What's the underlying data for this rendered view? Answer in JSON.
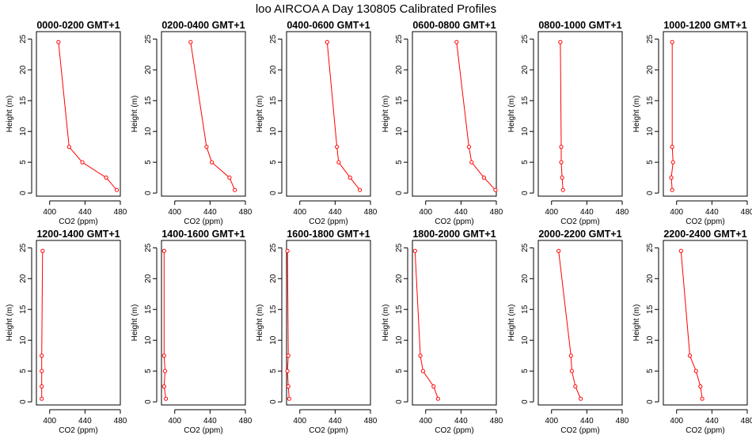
{
  "title": "loo AIRCOA A  Day 130805  Calibrated Profiles",
  "chart_data": {
    "type": "line",
    "xlabel": "CO2 (ppm)",
    "ylabel": "Height (m)",
    "xlim": [
      385,
      480
    ],
    "ylim": [
      0,
      25
    ],
    "xticks": [
      400,
      440,
      480
    ],
    "yticks": [
      0,
      5,
      10,
      15,
      20,
      25
    ],
    "line_color": "#ff0000",
    "marker": "open-circle",
    "grid": false,
    "panels": [
      {
        "title": "0000-0200 GMT+1",
        "points": [
          {
            "x": 410,
            "y": 24.5
          },
          {
            "x": 422,
            "y": 7.5
          },
          {
            "x": 437,
            "y": 5
          },
          {
            "x": 464,
            "y": 2.5
          },
          {
            "x": 476,
            "y": 0.5
          }
        ]
      },
      {
        "title": "0200-0400 GMT+1",
        "points": [
          {
            "x": 418,
            "y": 24.5
          },
          {
            "x": 436,
            "y": 7.5
          },
          {
            "x": 442,
            "y": 5
          },
          {
            "x": 462,
            "y": 2.5
          },
          {
            "x": 468,
            "y": 0.5
          }
        ]
      },
      {
        "title": "0400-0600 GMT+1",
        "points": [
          {
            "x": 431,
            "y": 24.5
          },
          {
            "x": 442,
            "y": 7.5
          },
          {
            "x": 444,
            "y": 5
          },
          {
            "x": 457,
            "y": 2.5
          },
          {
            "x": 468,
            "y": 0.5
          }
        ]
      },
      {
        "title": "0600-0800 GMT+1",
        "points": [
          {
            "x": 435,
            "y": 24.5
          },
          {
            "x": 449,
            "y": 7.5
          },
          {
            "x": 452,
            "y": 5
          },
          {
            "x": 466,
            "y": 2.5
          },
          {
            "x": 479,
            "y": 0.5
          }
        ]
      },
      {
        "title": "0800-1000 GMT+1",
        "points": [
          {
            "x": 410,
            "y": 24.5
          },
          {
            "x": 411,
            "y": 7.5
          },
          {
            "x": 411,
            "y": 5
          },
          {
            "x": 412,
            "y": 2.5
          },
          {
            "x": 413,
            "y": 0.5
          }
        ]
      },
      {
        "title": "1000-1200 GMT+1",
        "points": [
          {
            "x": 395,
            "y": 24.5
          },
          {
            "x": 395,
            "y": 7.5
          },
          {
            "x": 396,
            "y": 5
          },
          {
            "x": 394,
            "y": 2.5
          },
          {
            "x": 395,
            "y": 0.5
          }
        ]
      },
      {
        "title": "1200-1400 GMT+1",
        "points": [
          {
            "x": 392,
            "y": 24.5
          },
          {
            "x": 391,
            "y": 7.5
          },
          {
            "x": 391,
            "y": 5
          },
          {
            "x": 391,
            "y": 2.5
          },
          {
            "x": 391,
            "y": 0.5
          }
        ]
      },
      {
        "title": "1400-1600 GMT+1",
        "points": [
          {
            "x": 388,
            "y": 24.5
          },
          {
            "x": 388,
            "y": 7.5
          },
          {
            "x": 389,
            "y": 5
          },
          {
            "x": 388,
            "y": 2.5
          },
          {
            "x": 390,
            "y": 0.5
          }
        ]
      },
      {
        "title": "1600-1800 GMT+1",
        "points": [
          {
            "x": 386,
            "y": 24.5
          },
          {
            "x": 387,
            "y": 7.5
          },
          {
            "x": 386,
            "y": 5
          },
          {
            "x": 387,
            "y": 2.5
          },
          {
            "x": 388,
            "y": 0.5
          }
        ]
      },
      {
        "title": "1800-2000 GMT+1",
        "points": [
          {
            "x": 388,
            "y": 24.5
          },
          {
            "x": 394,
            "y": 7.5
          },
          {
            "x": 397,
            "y": 5
          },
          {
            "x": 409,
            "y": 2.5
          },
          {
            "x": 414,
            "y": 0.5
          }
        ]
      },
      {
        "title": "2000-2200 GMT+1",
        "points": [
          {
            "x": 408,
            "y": 24.5
          },
          {
            "x": 422,
            "y": 7.5
          },
          {
            "x": 423,
            "y": 5
          },
          {
            "x": 427,
            "y": 2.5
          },
          {
            "x": 433,
            "y": 0.5
          }
        ]
      },
      {
        "title": "2200-2400 GMT+1",
        "points": [
          {
            "x": 405,
            "y": 24.5
          },
          {
            "x": 415,
            "y": 7.5
          },
          {
            "x": 422,
            "y": 5
          },
          {
            "x": 427,
            "y": 2.5
          },
          {
            "x": 429,
            "y": 0.5
          }
        ]
      }
    ]
  }
}
